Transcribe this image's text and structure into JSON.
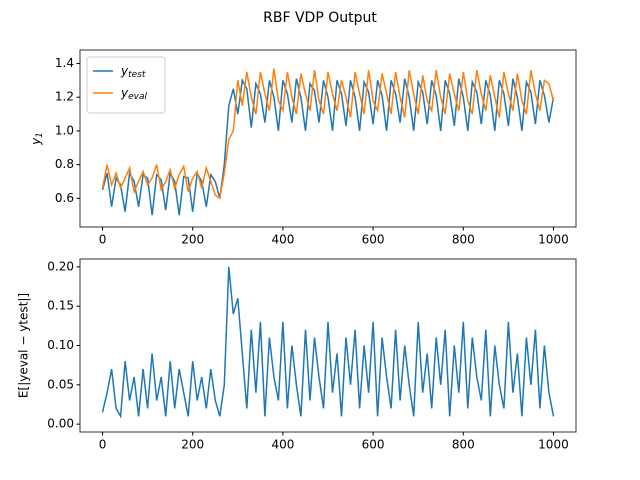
{
  "title": "RBF VDP Output",
  "chart_data": [
    {
      "type": "line",
      "ylabel": "y1",
      "legend": "upper left",
      "xlim": [
        -50,
        1050
      ],
      "ylim": [
        0.43,
        1.48
      ],
      "xticks": [
        0,
        200,
        400,
        600,
        800,
        1000
      ],
      "yticks": [
        0.6,
        0.8,
        {
          "value": 1.0,
          "label": "1.0"
        },
        1.2,
        1.4
      ],
      "x": [
        0,
        10,
        20,
        30,
        40,
        50,
        60,
        70,
        80,
        90,
        100,
        110,
        120,
        130,
        140,
        150,
        160,
        170,
        180,
        190,
        200,
        210,
        220,
        230,
        240,
        250,
        260,
        270,
        280,
        290,
        300,
        310,
        320,
        330,
        340,
        350,
        360,
        370,
        380,
        390,
        400,
        410,
        420,
        430,
        440,
        450,
        460,
        470,
        480,
        490,
        500,
        510,
        520,
        530,
        540,
        550,
        560,
        570,
        580,
        590,
        600,
        610,
        620,
        630,
        640,
        650,
        660,
        670,
        680,
        690,
        700,
        710,
        720,
        730,
        740,
        750,
        760,
        770,
        780,
        790,
        800,
        810,
        820,
        830,
        840,
        850,
        860,
        870,
        880,
        890,
        900,
        910,
        920,
        930,
        940,
        950,
        960,
        970,
        980,
        990,
        1000
      ],
      "series": [
        {
          "name": "ytest",
          "color": "#1f77b4",
          "values": [
            0.65,
            0.75,
            0.55,
            0.72,
            0.68,
            0.52,
            0.75,
            0.7,
            0.55,
            0.74,
            0.72,
            0.5,
            0.74,
            0.71,
            0.53,
            0.75,
            0.7,
            0.5,
            0.73,
            0.72,
            0.52,
            0.75,
            0.7,
            0.55,
            0.74,
            0.7,
            0.6,
            0.8,
            1.15,
            1.25,
            1.1,
            1.3,
            1.25,
            1.02,
            1.28,
            1.22,
            1.05,
            1.3,
            1.2,
            1.0,
            1.3,
            1.22,
            1.05,
            1.31,
            1.2,
            1.0,
            1.28,
            1.24,
            1.05,
            1.3,
            1.2,
            1.0,
            1.3,
            1.22,
            1.03,
            1.3,
            1.2,
            1.0,
            1.29,
            1.23,
            1.04,
            1.3,
            1.21,
            1.0,
            1.3,
            1.22,
            1.05,
            1.31,
            1.2,
            1.0,
            1.29,
            1.23,
            1.04,
            1.3,
            1.21,
            1.0,
            1.3,
            1.22,
            1.03,
            1.31,
            1.2,
            1.0,
            1.29,
            1.23,
            1.04,
            1.3,
            1.21,
            1.0,
            1.3,
            1.22,
            1.03,
            1.31,
            1.2,
            1.0,
            1.29,
            1.23,
            1.04,
            1.3,
            1.21,
            1.05,
            1.2
          ]
        },
        {
          "name": "yeval",
          "color": "#ff7f0e",
          "values": [
            0.66,
            0.8,
            0.68,
            0.75,
            0.66,
            0.72,
            0.78,
            0.64,
            0.7,
            0.76,
            0.68,
            0.72,
            0.8,
            0.65,
            0.7,
            0.77,
            0.66,
            0.74,
            0.79,
            0.64,
            0.72,
            0.76,
            0.66,
            0.78,
            0.7,
            0.62,
            0.6,
            0.75,
            0.95,
            1.0,
            1.3,
            1.15,
            1.35,
            1.2,
            1.1,
            1.35,
            1.22,
            1.12,
            1.37,
            1.18,
            1.12,
            1.35,
            1.2,
            1.1,
            1.34,
            1.22,
            1.12,
            1.36,
            1.18,
            1.1,
            1.35,
            1.22,
            1.12,
            1.3,
            1.2,
            1.08,
            1.35,
            1.22,
            1.1,
            1.36,
            1.18,
            1.12,
            1.34,
            1.22,
            1.1,
            1.35,
            1.2,
            1.08,
            1.36,
            1.22,
            1.1,
            1.33,
            1.18,
            1.12,
            1.36,
            1.2,
            1.1,
            1.34,
            1.22,
            1.12,
            1.35,
            1.18,
            1.1,
            1.36,
            1.22,
            1.12,
            1.33,
            1.2,
            1.08,
            1.35,
            1.22,
            1.12,
            1.34,
            1.18,
            1.1,
            1.36,
            1.22,
            1.12,
            1.3,
            1.28,
            1.18
          ]
        }
      ]
    },
    {
      "type": "line",
      "ylabel": "E[|yeval − ytest|]",
      "xlim": [
        -50,
        1050
      ],
      "ylim": [
        -0.01,
        0.21
      ],
      "xticks": [
        0,
        200,
        400,
        600,
        800,
        1000
      ],
      "yticks": [
        {
          "value": 0,
          "label": "0.00"
        },
        {
          "value": 0.05,
          "label": "0.05"
        },
        {
          "value": 0.1,
          "label": "0.10"
        },
        {
          "value": 0.15,
          "label": "0.15"
        },
        {
          "value": 0.2,
          "label": "0.20"
        }
      ],
      "x": [
        0,
        10,
        20,
        30,
        40,
        50,
        60,
        70,
        80,
        90,
        100,
        110,
        120,
        130,
        140,
        150,
        160,
        170,
        180,
        190,
        200,
        210,
        220,
        230,
        240,
        250,
        260,
        270,
        280,
        290,
        300,
        310,
        320,
        330,
        340,
        350,
        360,
        370,
        380,
        390,
        400,
        410,
        420,
        430,
        440,
        450,
        460,
        470,
        480,
        490,
        500,
        510,
        520,
        530,
        540,
        550,
        560,
        570,
        580,
        590,
        600,
        610,
        620,
        630,
        640,
        650,
        660,
        670,
        680,
        690,
        700,
        710,
        720,
        730,
        740,
        750,
        760,
        770,
        780,
        790,
        800,
        810,
        820,
        830,
        840,
        850,
        860,
        870,
        880,
        890,
        900,
        910,
        920,
        930,
        940,
        950,
        960,
        970,
        980,
        990,
        1000
      ],
      "series": [
        {
          "color": "#1f77b4",
          "values": [
            0.015,
            0.04,
            0.07,
            0.02,
            0.01,
            0.08,
            0.03,
            0.06,
            0.01,
            0.07,
            0.02,
            0.09,
            0.03,
            0.06,
            0.01,
            0.08,
            0.02,
            0.07,
            0.04,
            0.01,
            0.08,
            0.03,
            0.06,
            0.02,
            0.07,
            0.03,
            0.01,
            0.05,
            0.2,
            0.14,
            0.16,
            0.09,
            0.02,
            0.12,
            0.04,
            0.13,
            0.01,
            0.11,
            0.06,
            0.03,
            0.13,
            0.02,
            0.1,
            0.05,
            0.01,
            0.12,
            0.03,
            0.11,
            0.06,
            0.02,
            0.13,
            0.04,
            0.09,
            0.01,
            0.11,
            0.05,
            0.12,
            0.02,
            0.1,
            0.04,
            0.13,
            0.01,
            0.11,
            0.06,
            0.02,
            0.12,
            0.03,
            0.1,
            0.05,
            0.01,
            0.13,
            0.04,
            0.09,
            0.02,
            0.11,
            0.05,
            0.12,
            0.01,
            0.1,
            0.04,
            0.13,
            0.02,
            0.11,
            0.06,
            0.03,
            0.12,
            0.01,
            0.1,
            0.05,
            0.02,
            0.13,
            0.04,
            0.09,
            0.01,
            0.11,
            0.05,
            0.12,
            0.02,
            0.1,
            0.04,
            0.01
          ]
        }
      ]
    }
  ]
}
